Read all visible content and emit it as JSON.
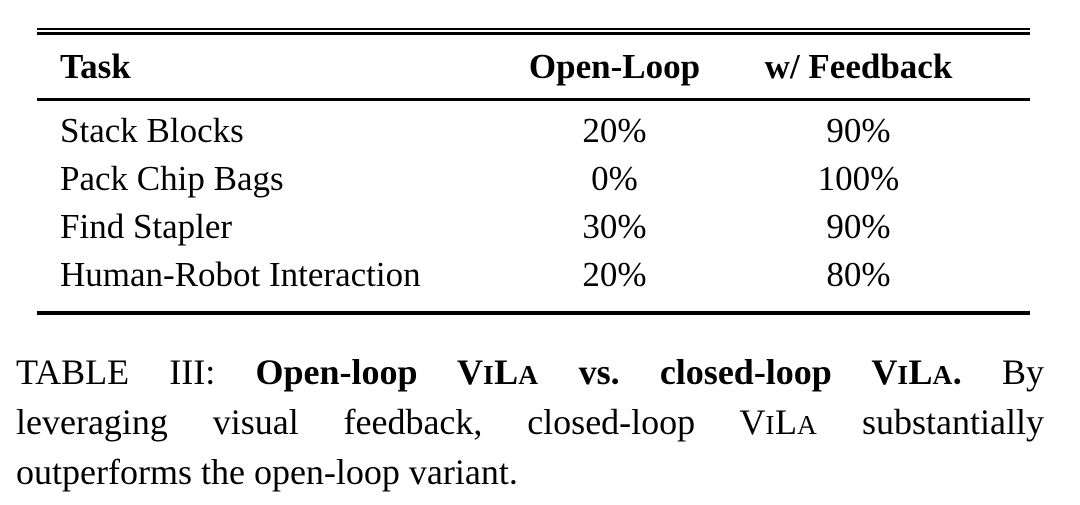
{
  "page": {
    "background_color": "#ffffff",
    "text_color": "#000000",
    "rule_color": "#000000"
  },
  "table": {
    "columns": [
      {
        "label": "Task",
        "align": "left"
      },
      {
        "label": "Open-Loop",
        "align": "center"
      },
      {
        "label": "w/ Feedback",
        "align": "center"
      }
    ],
    "rows": [
      {
        "task": "Stack Blocks",
        "open_loop": "20%",
        "w_feedback": "90%"
      },
      {
        "task": "Pack Chip Bags",
        "open_loop": "0%",
        "w_feedback": "100%"
      },
      {
        "task": "Find Stapler",
        "open_loop": "30%",
        "w_feedback": "90%"
      },
      {
        "task": "Human-Robot Interaction",
        "open_loop": "20%",
        "w_feedback": "80%"
      }
    ]
  },
  "caption": {
    "label": "TABLE III:",
    "bold_title": "Open-loop ViLa vs. closed-loop ViLa.",
    "body_text": "By leveraging visual feedback, closed-loop ViLa substantially outperforms the open-loop variant.",
    "lines": [
      {
        "justify_last": true,
        "segments": [
          {
            "text": "TABLE III: ",
            "style": "normal"
          },
          {
            "text": "Open-loop ",
            "style": "bold"
          },
          {
            "text": "ViLa",
            "style": "bold-sc"
          },
          {
            "text": " vs. closed-loop ",
            "style": "bold"
          },
          {
            "text": "ViLa",
            "style": "bold-sc"
          },
          {
            "text": ".",
            "style": "bold"
          },
          {
            "text": " By",
            "style": "normal"
          }
        ]
      },
      {
        "justify_last": true,
        "segments": [
          {
            "text": "leveraging visual feedback, closed-loop ",
            "style": "normal"
          },
          {
            "text": "ViLa",
            "style": "sc"
          },
          {
            "text": " substantially",
            "style": "normal"
          }
        ]
      },
      {
        "justify_last": false,
        "segments": [
          {
            "text": "outperforms the open-loop variant.",
            "style": "normal"
          }
        ]
      }
    ]
  }
}
